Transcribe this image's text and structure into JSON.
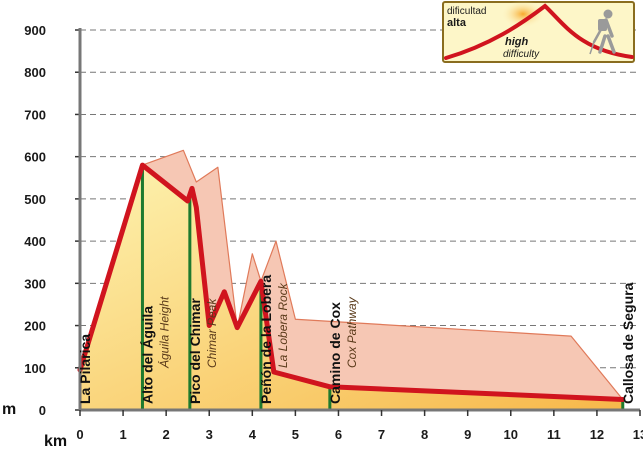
{
  "chart_data": {
    "type": "area",
    "x_unit": "km",
    "y_unit": "m",
    "xlim": [
      0,
      13
    ],
    "ylim": [
      0,
      900
    ],
    "x_ticks": [
      0,
      1,
      2,
      3,
      4,
      5,
      6,
      7,
      8,
      9,
      10,
      11,
      12,
      13
    ],
    "y_ticks": [
      0,
      100,
      200,
      300,
      400,
      500,
      600,
      700,
      800,
      900
    ],
    "grid": "horizontal-dashed",
    "series": [
      {
        "x": [
          0,
          1.45,
          2.5,
          2.6,
          2.7,
          3.0,
          3.35,
          3.65,
          4.2,
          4.5,
          5.8,
          12.6
        ],
        "y": [
          95,
          580,
          495,
          525,
          480,
          200,
          280,
          195,
          305,
          90,
          55,
          25
        ]
      }
    ],
    "waypoints": [
      {
        "name": "La Pilarica",
        "name_en": "",
        "x": 0
      },
      {
        "name": "Alto del Águila",
        "name_en": "Águila Height",
        "x": 1.45
      },
      {
        "name": "Pico del Chimar",
        "name_en": "Chimar Peak",
        "x": 2.55
      },
      {
        "name": "Peñón de la Lobera",
        "name_en": "La Lobera Rock",
        "x": 4.2
      },
      {
        "name": "Camino de Cox",
        "name_en": "Cox Pathway",
        "x": 5.8
      },
      {
        "name": "Callosa de Segura",
        "name_en": "",
        "x": 12.6
      }
    ],
    "perspective_polygon": [
      [
        1.45,
        580
      ],
      [
        2.4,
        615
      ],
      [
        2.7,
        540
      ],
      [
        3.2,
        575
      ],
      [
        3.65,
        195
      ],
      [
        4.0,
        370
      ],
      [
        4.2,
        305
      ],
      [
        4.55,
        400
      ],
      [
        5.0,
        215
      ],
      [
        11.4,
        175
      ],
      [
        12.6,
        25
      ],
      [
        5.8,
        55
      ],
      [
        4.5,
        90
      ],
      [
        4.2,
        305
      ],
      [
        3.65,
        195
      ],
      [
        3.35,
        280
      ],
      [
        3.0,
        200
      ],
      [
        2.7,
        480
      ],
      [
        2.6,
        525
      ],
      [
        2.5,
        495
      ]
    ],
    "difficulty_badge": {
      "es_line1": "dificultad",
      "es_line2": "alta",
      "en_line1": "high",
      "en_line2": "difficulty"
    },
    "colors": {
      "profile_line": "#d0141e",
      "marker_line": "#1e7a2e",
      "fill_top": "#fdf3b0",
      "fill_bottom": "#f7b84a",
      "perspective_fill": "#f6c7b4",
      "perspective_stroke": "#e07a5a",
      "badge_border": "#8a6d1f",
      "badge_bg": "#fdf6c8"
    }
  }
}
